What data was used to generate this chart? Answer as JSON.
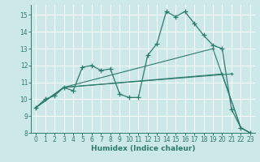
{
  "xlabel": "Humidex (Indice chaleur)",
  "background_color": "#cce8e8",
  "grid_color": "#ffffff",
  "line_color": "#2e7b6e",
  "xlim": [
    -0.5,
    23.5
  ],
  "ylim": [
    8.0,
    15.6
  ],
  "yticks": [
    8,
    9,
    10,
    11,
    12,
    13,
    14,
    15
  ],
  "xticks": [
    0,
    1,
    2,
    3,
    4,
    5,
    6,
    7,
    8,
    9,
    10,
    11,
    12,
    13,
    14,
    15,
    16,
    17,
    18,
    19,
    20,
    21,
    22,
    23
  ],
  "curve1_x": [
    0,
    1,
    2,
    3,
    4,
    5,
    6,
    7,
    8,
    9,
    10,
    11,
    12,
    13,
    14,
    15,
    16,
    17,
    18,
    19,
    20,
    21,
    22,
    23
  ],
  "curve1_y": [
    9.5,
    10.0,
    10.2,
    10.7,
    10.5,
    11.9,
    12.0,
    11.7,
    11.8,
    10.3,
    10.1,
    10.1,
    12.6,
    13.3,
    15.2,
    14.9,
    15.2,
    14.5,
    13.8,
    13.2,
    13.0,
    9.4,
    8.3,
    8.0
  ],
  "fan_lines": [
    {
      "x": [
        0,
        3,
        19,
        22,
        23
      ],
      "y": [
        9.5,
        10.7,
        13.0,
        8.3,
        8.0
      ]
    },
    {
      "x": [
        0,
        3,
        20,
        22,
        23
      ],
      "y": [
        9.5,
        10.7,
        11.5,
        8.3,
        8.0
      ]
    },
    {
      "x": [
        0,
        3,
        21
      ],
      "y": [
        9.5,
        10.7,
        11.5
      ]
    }
  ]
}
